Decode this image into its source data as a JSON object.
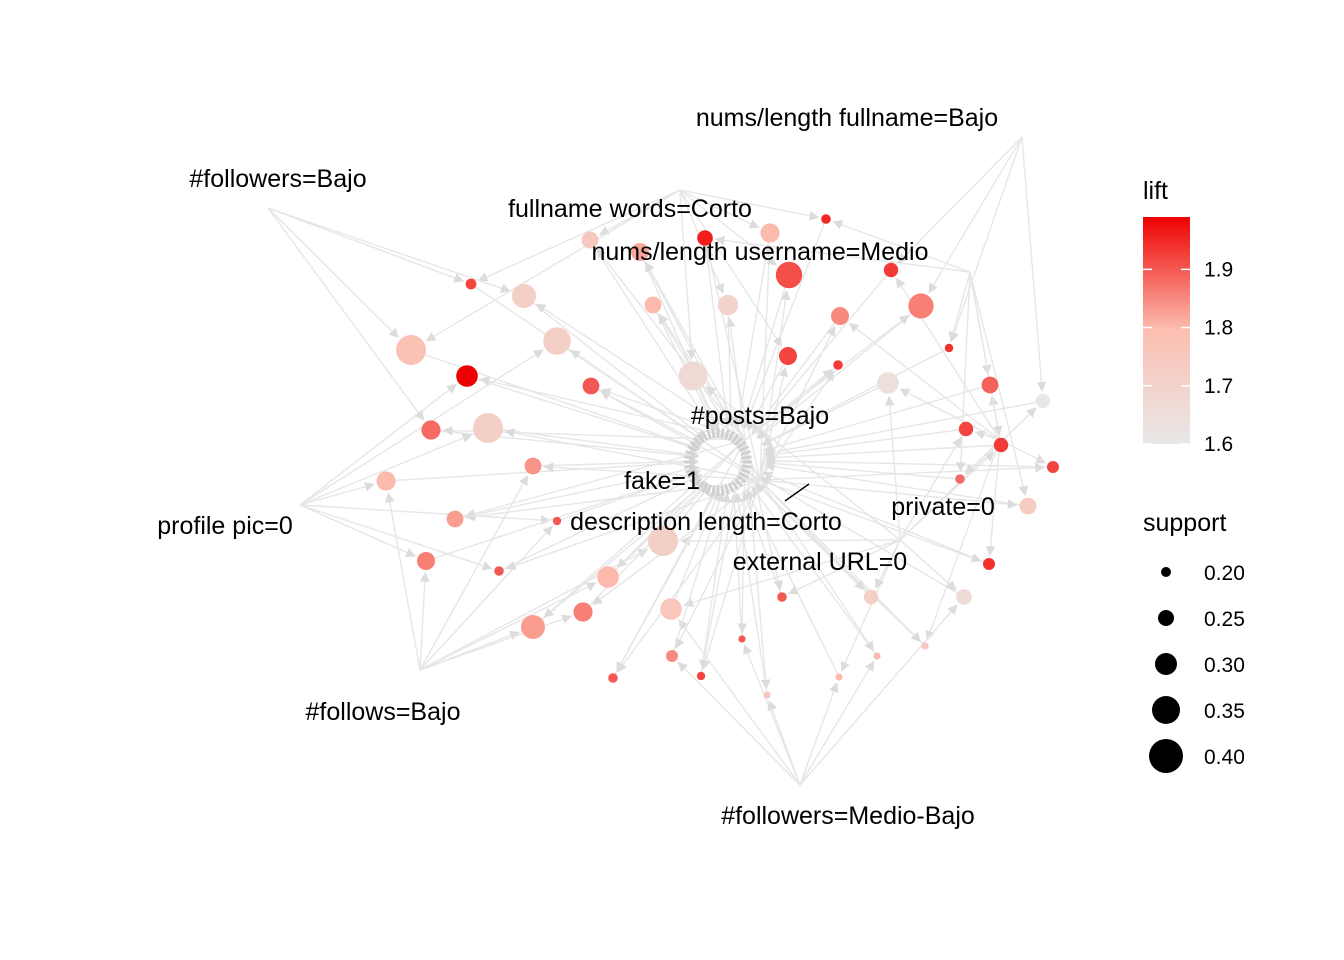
{
  "graph": {
    "colors": {
      "lift_low": "#e8e8e8",
      "lift_mid": "#fcbfb1",
      "lift_high": "#ee0000",
      "edge": "#e6e6e6"
    },
    "items": [
      {
        "id": "followers_bajo",
        "label": "#followers=Bajo"
      },
      {
        "id": "fullname_words",
        "label": "fullname words=Corto"
      },
      {
        "id": "nums_fullname",
        "label": "nums/length fullname=Bajo"
      },
      {
        "id": "nums_username",
        "label": "nums/length username=Medio"
      },
      {
        "id": "posts_bajo",
        "label": "#posts=Bajo"
      },
      {
        "id": "fake",
        "label": "fake=1"
      },
      {
        "id": "desc_len",
        "label": "description length=Corto"
      },
      {
        "id": "private",
        "label": "private=0"
      },
      {
        "id": "profile_pic",
        "label": "profile pic=0"
      },
      {
        "id": "external_url",
        "label": "external URL=0"
      },
      {
        "id": "follows_bajo",
        "label": "#follows=Bajo"
      },
      {
        "id": "followers_mb",
        "label": "#followers=Medio-Bajo"
      }
    ],
    "rules": [
      {
        "lift": 1.75,
        "support": 0.24
      },
      {
        "lift": 1.82,
        "support": 0.25
      },
      {
        "lift": 1.96,
        "support": 0.23
      },
      {
        "lift": 1.8,
        "support": 0.26
      },
      {
        "lift": 1.95,
        "support": 0.18
      },
      {
        "lift": 1.93,
        "support": 0.22
      },
      {
        "lift": 1.86,
        "support": 0.31
      },
      {
        "lift": 1.91,
        "support": 0.32
      },
      {
        "lift": 1.7,
        "support": 0.27
      },
      {
        "lift": 1.8,
        "support": 0.24
      },
      {
        "lift": 1.85,
        "support": 0.25
      },
      {
        "lift": 1.94,
        "support": 0.17
      },
      {
        "lift": 1.93,
        "support": 0.18
      },
      {
        "lift": 1.92,
        "support": 0.25
      },
      {
        "lift": 1.67,
        "support": 0.34
      },
      {
        "lift": 1.64,
        "support": 0.28
      },
      {
        "lift": 1.89,
        "support": 0.24
      },
      {
        "lift": 1.93,
        "support": 0.22
      },
      {
        "lift": 1.6,
        "support": 0.22
      },
      {
        "lift": 1.92,
        "support": 0.2
      },
      {
        "lift": 1.92,
        "support": 0.19
      },
      {
        "lift": 1.72,
        "support": 0.3
      },
      {
        "lift": 1.72,
        "support": 0.33
      },
      {
        "lift": 1.99,
        "support": 0.28
      },
      {
        "lift": 1.9,
        "support": 0.24
      },
      {
        "lift": 1.78,
        "support": 0.35
      },
      {
        "lift": 1.88,
        "support": 0.26
      },
      {
        "lift": 1.72,
        "support": 0.35
      },
      {
        "lift": 1.8,
        "support": 0.26
      },
      {
        "lift": 1.84,
        "support": 0.24
      },
      {
        "lift": 1.83,
        "support": 0.24
      },
      {
        "lift": 1.9,
        "support": 0.17
      },
      {
        "lift": 1.86,
        "support": 0.25
      },
      {
        "lift": 1.9,
        "support": 0.18
      },
      {
        "lift": 1.72,
        "support": 0.35
      },
      {
        "lift": 1.83,
        "support": 0.3
      },
      {
        "lift": 1.86,
        "support": 0.26
      },
      {
        "lift": 1.8,
        "support": 0.28
      },
      {
        "lift": 1.76,
        "support": 0.28
      },
      {
        "lift": 1.9,
        "support": 0.16
      },
      {
        "lift": 1.85,
        "support": 0.2
      },
      {
        "lift": 1.92,
        "support": 0.17
      },
      {
        "lift": 1.9,
        "support": 0.18
      },
      {
        "lift": 1.75,
        "support": 0.16
      },
      {
        "lift": 1.8,
        "support": 0.16
      },
      {
        "lift": 1.8,
        "support": 0.16
      },
      {
        "lift": 1.75,
        "support": 0.16
      },
      {
        "lift": 1.88,
        "support": 0.18
      },
      {
        "lift": 1.92,
        "support": 0.22
      },
      {
        "lift": 1.94,
        "support": 0.2
      },
      {
        "lift": 1.74,
        "support": 0.24
      },
      {
        "lift": 1.66,
        "support": 0.23
      },
      {
        "lift": 1.72,
        "support": 0.22
      },
      {
        "lift": 1.9,
        "support": 0.18
      }
    ]
  },
  "legend_lift": {
    "title": "lift",
    "ticks": [
      "1.9",
      "1.8",
      "1.7",
      "1.6"
    ],
    "tick_values": [
      1.9,
      1.8,
      1.7,
      1.6
    ],
    "range": [
      1.6,
      1.99
    ]
  },
  "legend_support": {
    "title": "support",
    "entries": [
      {
        "label": "0.20",
        "value": 0.2
      },
      {
        "label": "0.25",
        "value": 0.25
      },
      {
        "label": "0.30",
        "value": 0.3
      },
      {
        "label": "0.35",
        "value": 0.35
      },
      {
        "label": "0.40",
        "value": 0.4
      }
    ]
  }
}
